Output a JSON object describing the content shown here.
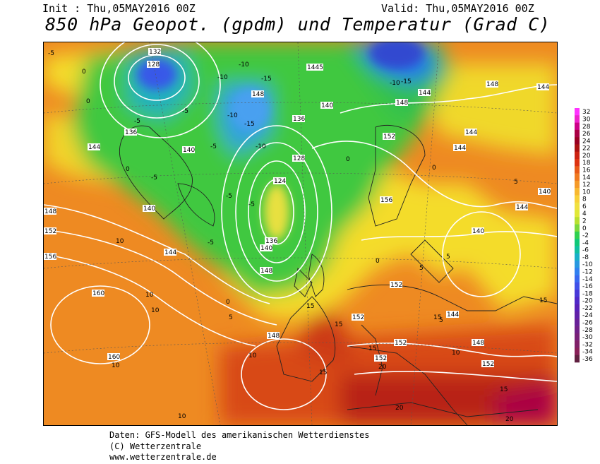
{
  "header": {
    "init": "Init : Thu,05MAY2016 00Z",
    "valid": "Valid: Thu,05MAY2016 00Z",
    "title": "850 hPa Geopot. (gpdm) und Temperatur (Grad C)"
  },
  "footer": {
    "line1": "Daten: GFS-Modell des amerikanischen Wetterdienstes",
    "line2": "(C) Wetterzentrale",
    "line3": "www.wetterzentrale.de"
  },
  "legend": {
    "values": [
      "32",
      "30",
      "28",
      "26",
      "24",
      "22",
      "20",
      "18",
      "16",
      "14",
      "12",
      "10",
      "8",
      "6",
      "4",
      "2",
      "0",
      "-2",
      "-4",
      "-6",
      "-8",
      "-10",
      "-12",
      "-14",
      "-16",
      "-18",
      "-20",
      "-22",
      "-24",
      "-26",
      "-28",
      "-30",
      "-32",
      "-34",
      "-36"
    ],
    "colors": [
      "#ff33ff",
      "#ee22cc",
      "#cc0088",
      "#aa0044",
      "#990022",
      "#aa1111",
      "#cc2211",
      "#dd3311",
      "#e85a18",
      "#f07a20",
      "#f59a28",
      "#f8b830",
      "#f8d038",
      "#f0e040",
      "#e0e838",
      "#b8e030",
      "#7cd83c",
      "#30d050",
      "#10c878",
      "#10c0a0",
      "#18b0c8",
      "#2898e0",
      "#3080f0",
      "#3868f0",
      "#4050e8",
      "#4838d8",
      "#5028c8",
      "#5820b8",
      "#6020a8",
      "#682098",
      "#702088",
      "#782078",
      "#802068",
      "#882058",
      "#602040"
    ]
  },
  "map": {
    "geopotential_labels": [
      "132",
      "128",
      "136",
      "140",
      "144",
      "148",
      "152",
      "156",
      "160",
      "124",
      "1445"
    ],
    "temperature_labels": [
      "-5",
      "-10",
      "-15",
      "0",
      "5",
      "10",
      "15",
      "20"
    ]
  }
}
